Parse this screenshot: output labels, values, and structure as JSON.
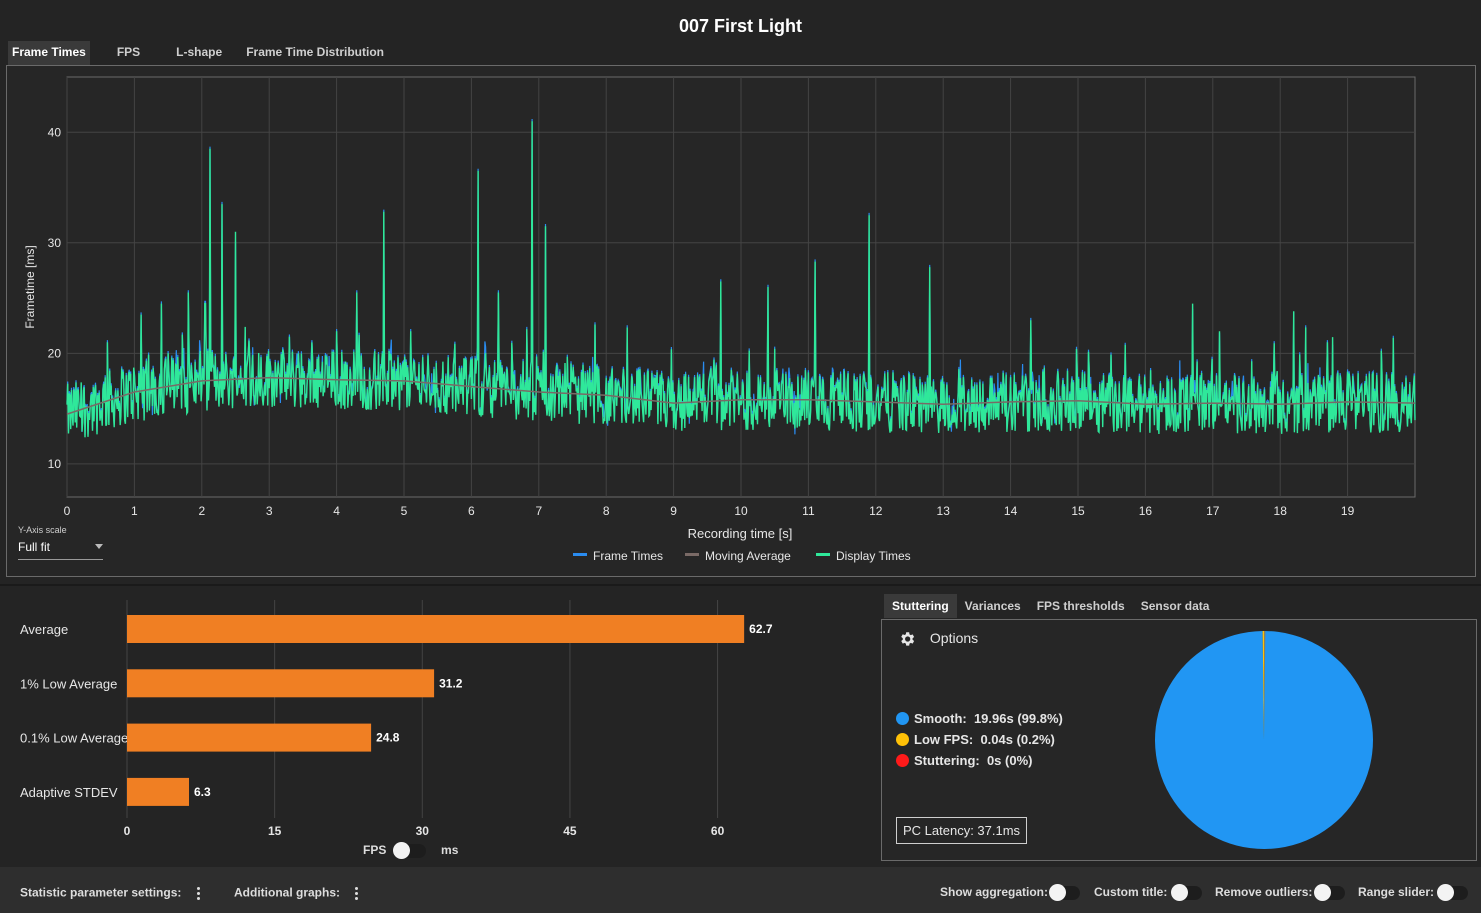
{
  "title": "007 First Light",
  "tabs": [
    "Frame Times",
    "FPS",
    "L-shape",
    "Frame Time Distribution"
  ],
  "y_axis_scale": {
    "label": "Y-Axis scale",
    "value": "Full fit"
  },
  "frametime_chart": {
    "ylabel": "Frametime [ms]",
    "xlabel": "Recording time [s]",
    "x_ticks": [
      "0",
      "1",
      "2",
      "3",
      "4",
      "5",
      "6",
      "7",
      "8",
      "9",
      "10",
      "11",
      "12",
      "13",
      "14",
      "15",
      "16",
      "17",
      "18",
      "19"
    ],
    "y_ticks": [
      "10",
      "20",
      "30",
      "40"
    ],
    "legend": [
      "Frame Times",
      "Moving Average",
      "Display Times"
    ],
    "colors": {
      "frame_times": "#2a8cf0",
      "moving_average": "#7a6a66",
      "display_times": "#2fe89a"
    }
  },
  "chart_data": [
    {
      "type": "line",
      "xlabel": "Recording time [s]",
      "ylabel": "Frametime [ms]",
      "xlim": [
        0,
        20
      ],
      "ylim": [
        7,
        45
      ],
      "grid": true,
      "legend_position": "bottom",
      "series": [
        {
          "name": "Frame Times",
          "color": "#2a8cf0"
        },
        {
          "name": "Moving Average",
          "color": "#7a6a66",
          "x": [
            0,
            1,
            2,
            3,
            4,
            5,
            6,
            7,
            8,
            9,
            10,
            11,
            12,
            13,
            14,
            15,
            16,
            17,
            18,
            19,
            20
          ],
          "values": [
            14.5,
            16.5,
            17.5,
            17.8,
            17.6,
            17.5,
            17.0,
            16.5,
            16.2,
            15.5,
            15.8,
            15.8,
            15.6,
            15.4,
            15.6,
            15.7,
            15.4,
            15.5,
            15.4,
            15.6,
            15.5
          ]
        },
        {
          "name": "Display Times",
          "color": "#2fe89a",
          "spikes_x": [
            0.6,
            1.1,
            1.4,
            1.8,
            2.05,
            2.12,
            2.3,
            2.5,
            3.3,
            4.0,
            4.3,
            4.7,
            5.1,
            6.1,
            6.4,
            6.9,
            7.1,
            9.7,
            10.4,
            11.1,
            11.9,
            12.8,
            14.3,
            16.7,
            17.1,
            18.2,
            18.7
          ],
          "spikes_y": [
            21,
            23.5,
            24.5,
            25.5,
            24.5,
            38.5,
            33.5,
            31,
            21.5,
            22,
            25.5,
            32.8,
            22,
            36.5,
            25.5,
            41,
            31.5,
            26.5,
            26,
            28.3,
            32.5,
            27.8,
            23,
            24.5,
            22,
            23.8,
            21
          ]
        }
      ]
    },
    {
      "type": "bar",
      "orientation": "horizontal",
      "categories": [
        "Average",
        "1% Low Average",
        "0.1% Low Average",
        "Adaptive STDEV"
      ],
      "values": [
        62.7,
        31.2,
        24.8,
        6.3
      ],
      "xlim": [
        0,
        70
      ],
      "x_ticks": [
        "0",
        "15",
        "30",
        "45",
        "60"
      ],
      "color": "#f07f23"
    },
    {
      "type": "pie",
      "categories": [
        "Smooth",
        "Low FPS",
        "Stuttering"
      ],
      "values": [
        99.8,
        0.2,
        0
      ],
      "colors": [
        "#2196f3",
        "#ffc107",
        "#ff1a1a"
      ]
    }
  ],
  "bar_toggle": {
    "left": "FPS",
    "right": "ms"
  },
  "stutter_tabs": [
    "Stuttering",
    "Variances",
    "FPS thresholds",
    "Sensor data"
  ],
  "stutter": {
    "options_label": "Options",
    "items": [
      {
        "label": "Smooth:",
        "value": "19.96s (99.8%)",
        "color": "#2196f3"
      },
      {
        "label": "Low FPS:",
        "value": "0.04s (0.2%)",
        "color": "#ffc107"
      },
      {
        "label": "Stuttering:",
        "value": "0s (0%)",
        "color": "#ff1a1a"
      }
    ],
    "latency": "PC Latency: 37.1ms"
  },
  "bottom_bar": {
    "stat_settings": "Statistic parameter settings:",
    "additional_graphs": "Additional graphs:",
    "show_aggregation": "Show aggregation:",
    "custom_title": "Custom title:",
    "remove_outliers": "Remove outliers:",
    "range_slider": "Range slider:"
  }
}
